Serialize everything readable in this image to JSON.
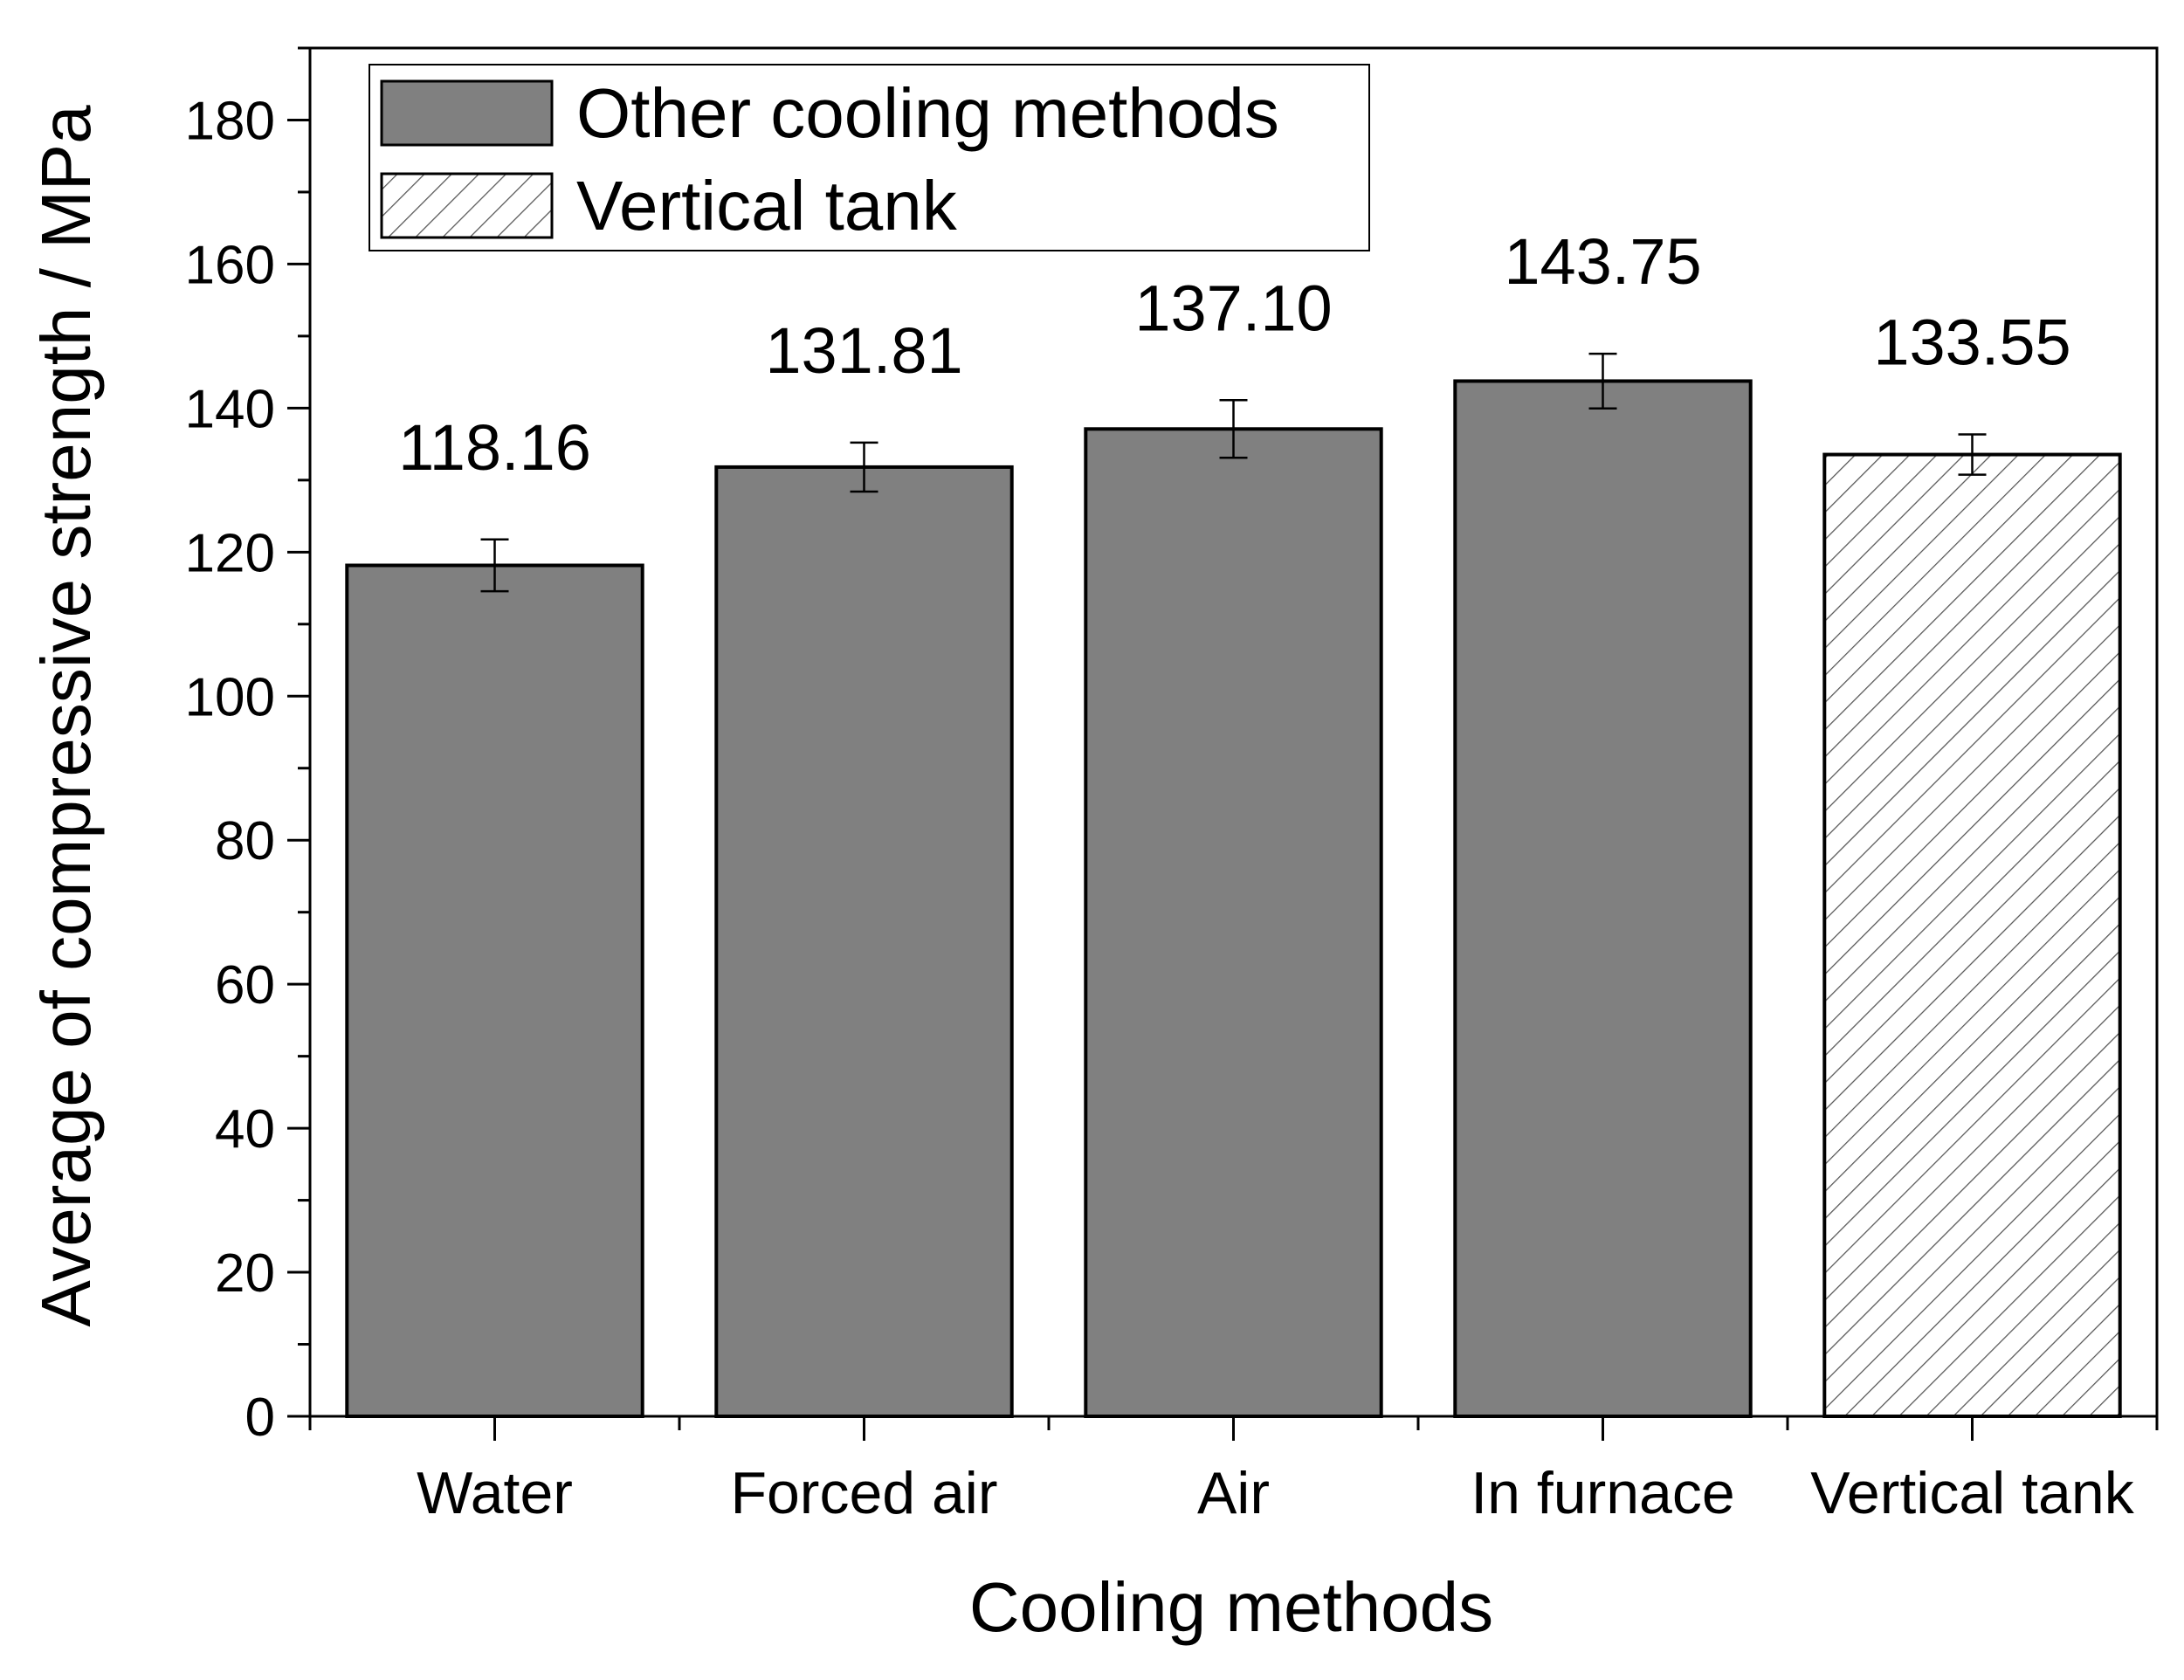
{
  "chart_data": {
    "type": "bar",
    "title": "",
    "xlabel": "Cooling methods",
    "ylabel": "Average of compressive strength / MPa",
    "ylim": [
      0,
      190
    ],
    "yticks": [
      0,
      20,
      40,
      60,
      80,
      100,
      120,
      140,
      160,
      180
    ],
    "categories": [
      "Water",
      "Forced air",
      "Air",
      "In furnace",
      "Vertical tank"
    ],
    "values": [
      118.16,
      131.81,
      137.1,
      143.75,
      133.55
    ],
    "value_labels": [
      "118.16",
      "131.81",
      "137.10",
      "143.75",
      "133.55"
    ],
    "errors": [
      3.6,
      3.4,
      4.0,
      3.8,
      2.8
    ],
    "series_of_bar": [
      "Other cooling methods",
      "Other cooling methods",
      "Other cooling methods",
      "Other cooling methods",
      "Vertical tank"
    ],
    "legend": {
      "position": "top-left",
      "entries": [
        {
          "name": "Other cooling methods",
          "style": "solid"
        },
        {
          "name": "Vertical tank",
          "style": "hatched"
        }
      ]
    },
    "colors": {
      "bar_fill": "#808080",
      "hatch_line": "#555555",
      "axis": "#000000"
    },
    "grid": false
  }
}
